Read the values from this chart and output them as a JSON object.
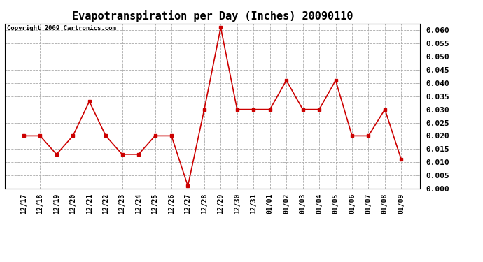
{
  "title": "Evapotranspiration per Day (Inches) 20090110",
  "copyright_text": "Copyright 2009 Cartronics.com",
  "labels": [
    "12/17",
    "12/18",
    "12/19",
    "12/20",
    "12/21",
    "12/22",
    "12/23",
    "12/24",
    "12/25",
    "12/26",
    "12/27",
    "12/28",
    "12/29",
    "12/30",
    "12/31",
    "01/01",
    "01/02",
    "01/03",
    "01/04",
    "01/05",
    "01/06",
    "01/07",
    "01/08",
    "01/09"
  ],
  "values": [
    0.02,
    0.02,
    0.013,
    0.02,
    0.033,
    0.02,
    0.013,
    0.013,
    0.02,
    0.02,
    0.001,
    0.03,
    0.061,
    0.03,
    0.03,
    0.03,
    0.041,
    0.03,
    0.03,
    0.041,
    0.02,
    0.02,
    0.03,
    0.011
  ],
  "line_color": "#cc0000",
  "marker": "s",
  "marker_size": 3,
  "ylim": [
    0.0,
    0.0625
  ],
  "yticks": [
    0.0,
    0.005,
    0.01,
    0.015,
    0.02,
    0.025,
    0.03,
    0.035,
    0.04,
    0.045,
    0.05,
    0.055,
    0.06
  ],
  "background_color": "#ffffff",
  "grid_color": "#aaaaaa",
  "title_fontsize": 11,
  "copyright_fontsize": 6.5,
  "tick_fontsize": 7,
  "ytick_fontsize": 8
}
